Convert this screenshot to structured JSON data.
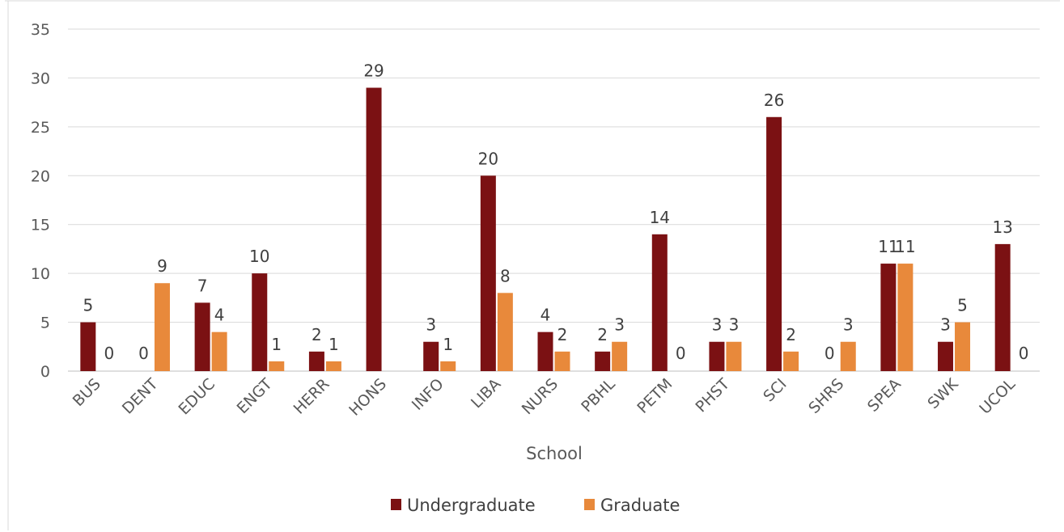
{
  "chart_data": {
    "type": "bar",
    "xlabel": "School",
    "ylabel": "",
    "ylim": [
      0,
      35
    ],
    "yticks": [
      0,
      5,
      10,
      15,
      20,
      25,
      30,
      35
    ],
    "grid": "horizontal",
    "legend_position": "bottom-center",
    "categories": [
      "BUS",
      "DENT",
      "EDUC",
      "ENGT",
      "HERR",
      "HONS",
      "INFO",
      "LIBA",
      "NURS",
      "PBHL",
      "PETM",
      "PHST",
      "SCI",
      "SHRS",
      "SPEA",
      "SWK",
      "UCOL"
    ],
    "series": [
      {
        "name": "Undergraduate",
        "color": "#7B1113",
        "values": [
          5,
          0,
          7,
          10,
          2,
          29,
          3,
          20,
          4,
          2,
          14,
          3,
          26,
          0,
          11,
          3,
          13
        ]
      },
      {
        "name": "Graduate",
        "color": "#E8893B",
        "values": [
          0,
          9,
          4,
          1,
          1,
          null,
          1,
          8,
          2,
          3,
          0,
          3,
          2,
          3,
          11,
          5,
          0
        ]
      }
    ]
  }
}
